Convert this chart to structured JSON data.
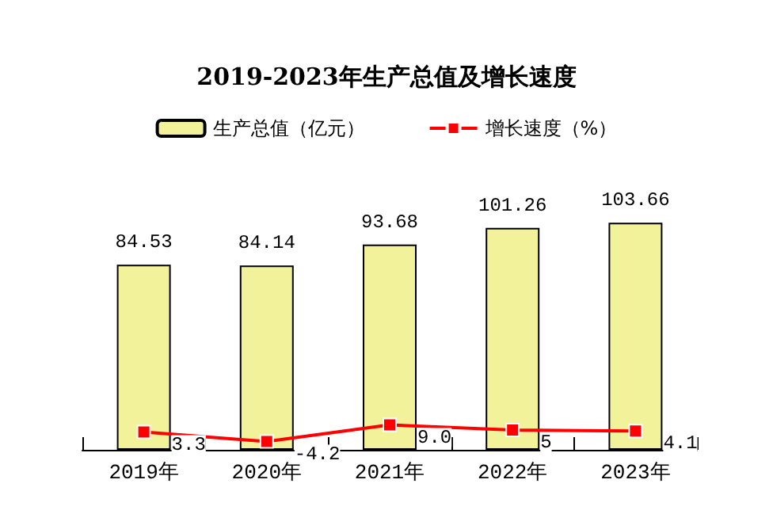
{
  "chart_data": {
    "type": "bar",
    "title": "2019-2023年生产总值及增长速度",
    "categories": [
      "2019年",
      "2020年",
      "2021年",
      "2022年",
      "2023年"
    ],
    "series": [
      {
        "name": "生产总值（亿元）",
        "color": "#f2f29a",
        "values": [
          84.53,
          84.14,
          93.68,
          101.26,
          103.66
        ],
        "value_labels": [
          "84.53",
          "84.14",
          "93.68",
          "101.26",
          "103.66"
        ]
      },
      {
        "name": "增长速度（%）",
        "type": "line",
        "axis": "y2",
        "color": "#ff0000",
        "values": [
          3.3,
          -4.2,
          9.0,
          5,
          4.1
        ],
        "value_labels": [
          "3.3",
          "-4.2",
          "9.0",
          "5",
          "4.1"
        ]
      }
    ],
    "legend": "top",
    "grid": false,
    "marker": "square",
    "line_style": "solid",
    "tick_labels": "x"
  }
}
